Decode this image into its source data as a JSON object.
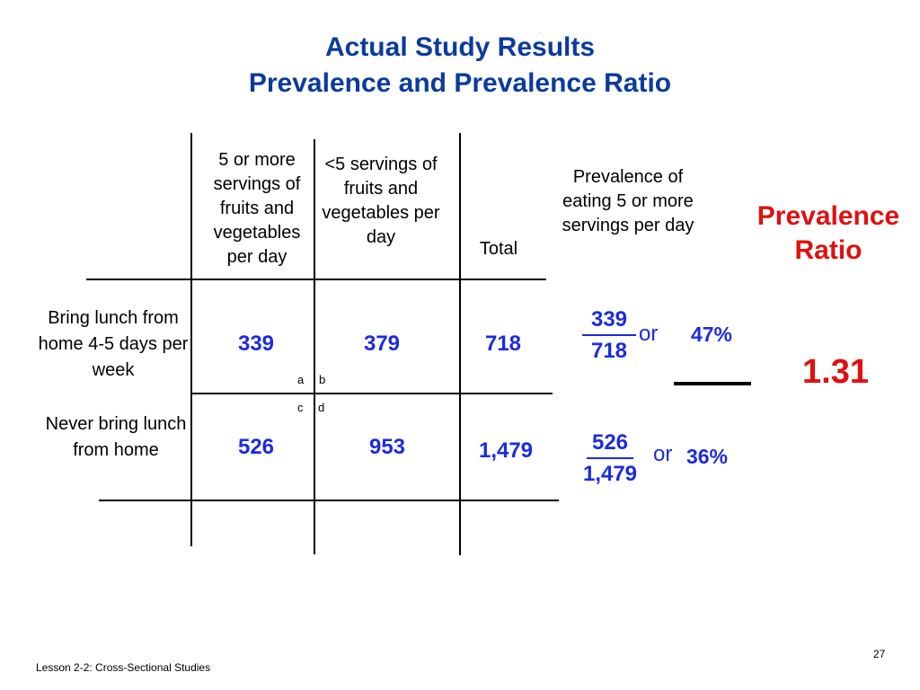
{
  "title": {
    "line1": "Actual Study Results",
    "line2": "Prevalence and Prevalence Ratio"
  },
  "table": {
    "col_headers": [
      "5 or more servings of fruits and vegetables per day",
      "<5 servings of fruits and vegetables per day",
      "Total"
    ],
    "rows": [
      {
        "label": "Bring lunch from home 4-5 days per week",
        "cells": [
          "339",
          "379",
          "718"
        ]
      },
      {
        "label": "Never bring lunch from home",
        "cells": [
          "526",
          "953",
          "1,479"
        ]
      }
    ],
    "cell_letters": {
      "a": "a",
      "b": "b",
      "c": "c",
      "d": "d"
    }
  },
  "prevalence": {
    "header": "Prevalence of eating  5 or more servings per day",
    "row1": {
      "numerator": "339",
      "denominator": "718",
      "or_label": "or",
      "percent": "47%"
    },
    "row2": {
      "numerator": "526",
      "denominator": "1,479",
      "or_label": "or",
      "percent": "36%"
    }
  },
  "ratio": {
    "label_line1": "Prevalence",
    "label_line2": "Ratio",
    "value": "1.31"
  },
  "footer": {
    "lesson": "Lesson 2-2: Cross-Sectional Studies",
    "page_number": "27"
  },
  "colors": {
    "title": "#0b3b9c",
    "values": "#1d2bdc",
    "ratio": "#e01010"
  }
}
